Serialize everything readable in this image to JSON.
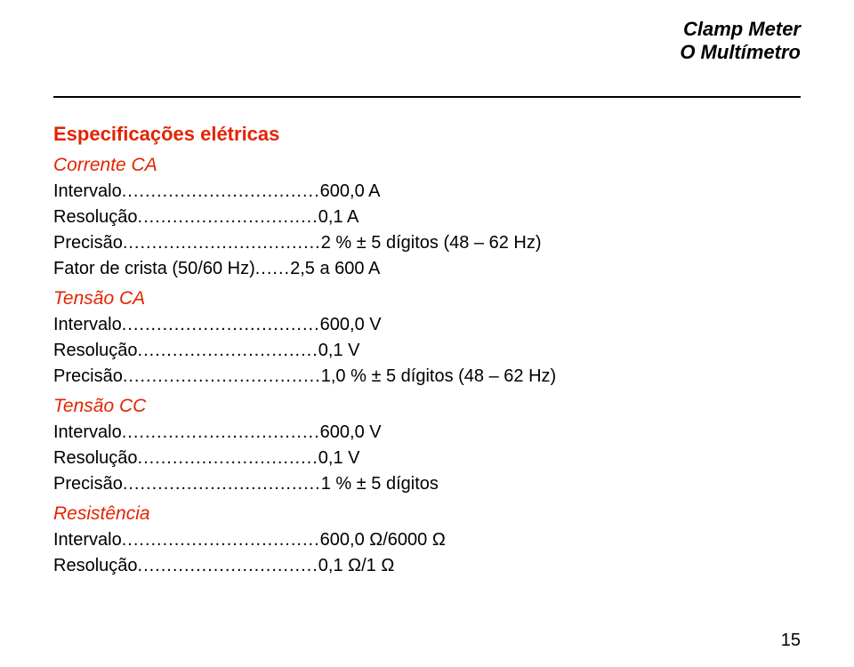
{
  "header": {
    "line1": "Clamp Meter",
    "line2": "O Multímetro"
  },
  "section_title": "Especificações elétricas",
  "groups": [
    {
      "heading": "Corrente CA",
      "rows": [
        {
          "label": "Intervalo",
          "dots": "..................................",
          "value": "600,0 A"
        },
        {
          "label": "Resolução",
          "dots": "...............................",
          "value": "0,1 A"
        },
        {
          "label": "Precisão",
          "dots": "..................................",
          "value": "2 % ± 5 dígitos (48 – 62 Hz)"
        },
        {
          "label": "Fator de crista (50/60 Hz)",
          "dots": "......",
          "value": "2,5 a 600 A"
        }
      ]
    },
    {
      "heading": "Tensão CA",
      "rows": [
        {
          "label": "Intervalo",
          "dots": "..................................",
          "value": "600,0 V"
        },
        {
          "label": "Resolução",
          "dots": "...............................",
          "value": "0,1 V"
        },
        {
          "label": "Precisão",
          "dots": "..................................",
          "value": "1,0 % ± 5 dígitos (48 – 62 Hz)"
        }
      ]
    },
    {
      "heading": "Tensão CC",
      "rows": [
        {
          "label": "Intervalo",
          "dots": "..................................",
          "value": "600,0 V"
        },
        {
          "label": "Resolução",
          "dots": "...............................",
          "value": "0,1 V"
        },
        {
          "label": "Precisão",
          "dots": "..................................",
          "value": "1 % ± 5 dígitos"
        }
      ]
    },
    {
      "heading": "Resistência",
      "rows": [
        {
          "label": "Intervalo",
          "dots": "..................................",
          "value": "600,0 Ω/6000 Ω"
        },
        {
          "label": "Resolução",
          "dots": "...............................",
          "value": "0,1 Ω/1 Ω"
        }
      ]
    }
  ],
  "page_number": "15",
  "colors": {
    "accent": "#e22400",
    "text": "#000000",
    "background": "#ffffff"
  },
  "typography": {
    "base_fontsize_pt": 15,
    "heading_fontsize_pt": 16,
    "header_fontsize_pt": 16
  }
}
